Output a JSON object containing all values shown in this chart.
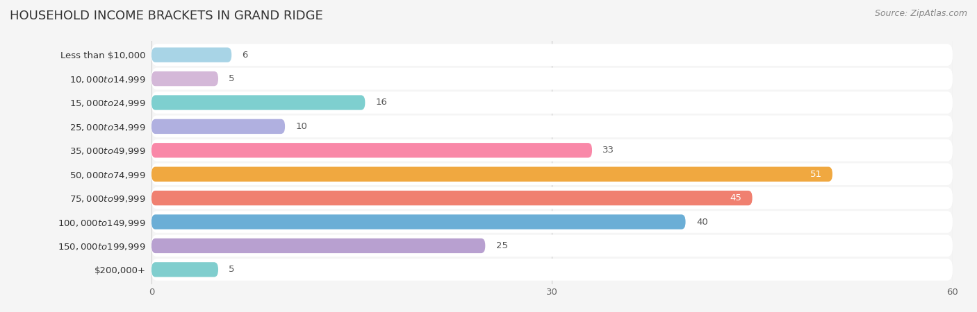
{
  "title": "HOUSEHOLD INCOME BRACKETS IN GRAND RIDGE",
  "source": "Source: ZipAtlas.com",
  "categories": [
    "Less than $10,000",
    "$10,000 to $14,999",
    "$15,000 to $24,999",
    "$25,000 to $34,999",
    "$35,000 to $49,999",
    "$50,000 to $74,999",
    "$75,000 to $99,999",
    "$100,000 to $149,999",
    "$150,000 to $199,999",
    "$200,000+"
  ],
  "values": [
    6,
    5,
    16,
    10,
    33,
    51,
    45,
    40,
    25,
    5
  ],
  "bar_colors": [
    "#a8d4e6",
    "#d4b8d8",
    "#7ecfcf",
    "#b0b0e0",
    "#f988a8",
    "#f0a840",
    "#f08070",
    "#6baed6",
    "#b8a0d0",
    "#80cece"
  ],
  "xlim": [
    0,
    60
  ],
  "xticks": [
    0,
    30,
    60
  ],
  "background_color": "#f5f5f5",
  "title_fontsize": 13,
  "label_fontsize": 9.5,
  "value_fontsize": 9.5,
  "source_fontsize": 9
}
